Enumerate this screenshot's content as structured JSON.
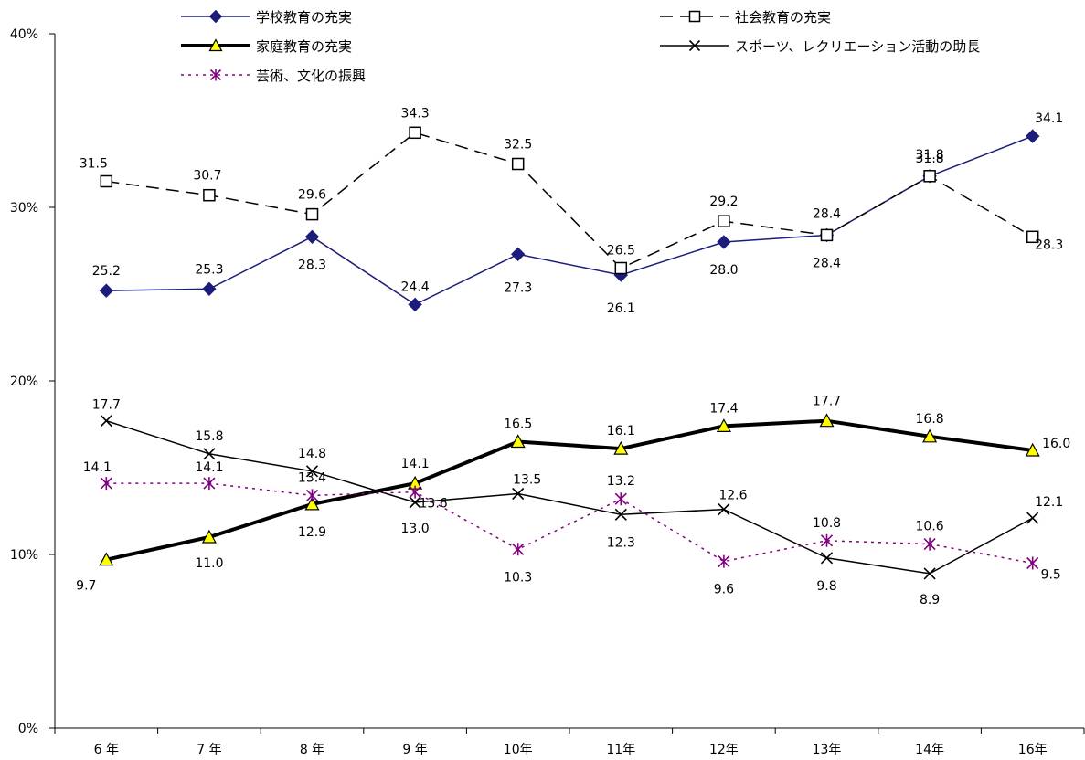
{
  "chart_data": {
    "type": "line",
    "categories": [
      "6 年",
      "7 年",
      "8 年",
      "9 年",
      "10年",
      "11年",
      "12年",
      "13年",
      "14年",
      "16年"
    ],
    "y_axis": {
      "min": 0,
      "max": 40,
      "ticks": [
        "0%",
        "10%",
        "20%",
        "30%",
        "40%"
      ],
      "tick_values": [
        0,
        10,
        20,
        30,
        40
      ]
    },
    "grid": false,
    "legend_position": "top",
    "series": [
      {
        "name": "学校教育の充実",
        "values": [
          25.2,
          25.3,
          28.3,
          24.4,
          27.3,
          26.1,
          28.0,
          28.4,
          31.8,
          34.1
        ],
        "labels": [
          "25.2",
          "25.3",
          "28.3",
          "24.4",
          "27.3",
          "26.1",
          "28.0",
          "28.4",
          "31.8",
          "34.1"
        ],
        "color": "#1c1c7a",
        "marker": "diamond",
        "dash": "",
        "width": 1.5
      },
      {
        "name": "社会教育の充実",
        "values": [
          31.5,
          30.7,
          29.6,
          34.3,
          32.5,
          26.5,
          29.2,
          28.4,
          31.8,
          28.3
        ],
        "labels": [
          "31.5",
          "30.7",
          "29.6",
          "34.3",
          "32.5",
          "26.5",
          "29.2",
          "28.4",
          "31.8",
          "28.3"
        ],
        "color": "#000000",
        "marker": "square",
        "dash": "14,8",
        "width": 1.5
      },
      {
        "name": "家庭教育の充実",
        "values": [
          9.7,
          11.0,
          12.9,
          14.1,
          16.5,
          16.1,
          17.4,
          17.7,
          16.8,
          16.0
        ],
        "labels": [
          "9.7",
          "11.0",
          "12.9",
          "14.1",
          "16.5",
          "16.1",
          "17.4",
          "17.7",
          "16.8",
          "16.0"
        ],
        "color": "#000000",
        "marker": "triangle",
        "dash": "",
        "width": 4
      },
      {
        "name": "スポーツ、レクリエーション活動の助長",
        "values": [
          17.7,
          15.8,
          14.8,
          13.0,
          13.5,
          12.3,
          12.6,
          9.8,
          8.9,
          12.1
        ],
        "labels": [
          "17.7",
          "15.8",
          "14.8",
          "13.0",
          "13.5",
          "12.3",
          "12.6",
          "9.8",
          "8.9",
          "12.1"
        ],
        "color": "#000000",
        "marker": "x",
        "dash": "",
        "width": 1.5
      },
      {
        "name": "芸術、文化の振興",
        "values": [
          14.1,
          14.1,
          13.4,
          13.6,
          10.3,
          13.2,
          9.6,
          10.8,
          10.6,
          9.5
        ],
        "labels": [
          "14.1",
          "14.1",
          "13.4",
          "13.6",
          "10.3",
          "13.2",
          "9.6",
          "10.8",
          "10.6",
          "9.5"
        ],
        "color": "#800080",
        "marker": "asterisk",
        "dash": "3,5",
        "width": 1.5
      }
    ]
  }
}
